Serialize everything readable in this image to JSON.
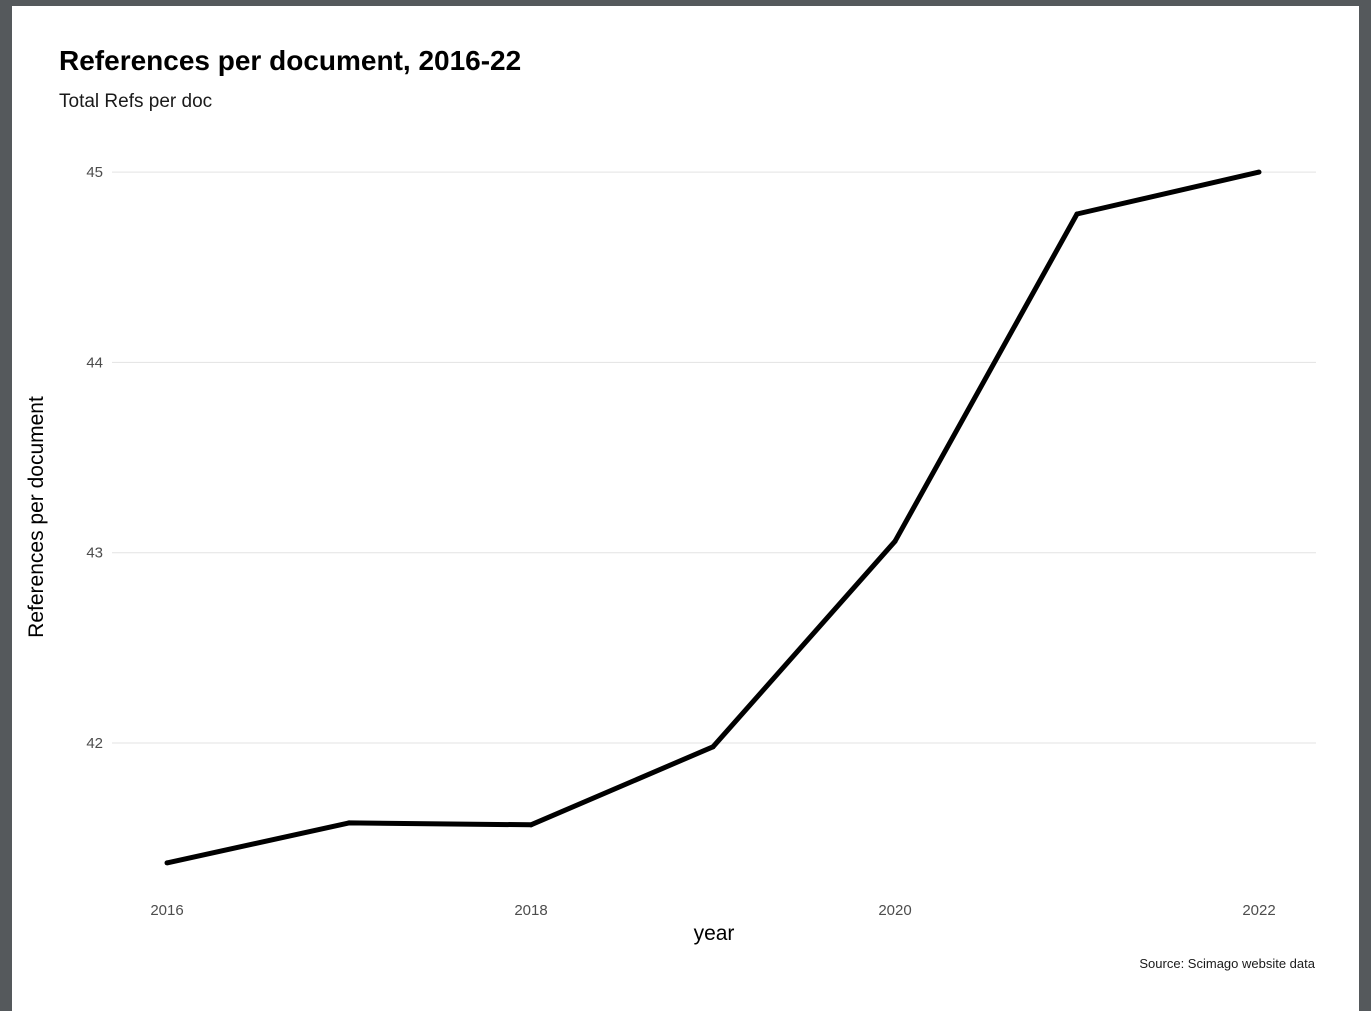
{
  "chart_data": {
    "type": "line",
    "title": "References per document, 2016-22",
    "subtitle": "Total Refs per doc",
    "xlabel": "year",
    "ylabel": "References per document",
    "caption": "Source: Scimago website data",
    "x": [
      2016,
      2017,
      2018,
      2019,
      2020,
      2021,
      2022
    ],
    "series": [
      {
        "values": [
          41.37,
          41.58,
          41.57,
          41.98,
          43.06,
          44.78,
          45.0
        ],
        "color": "#000000"
      }
    ],
    "xlim": [
      2016,
      2022
    ],
    "ylim": [
      41.37,
      45.0
    ],
    "x_ticks": [
      "2016",
      "2018",
      "2020",
      "2022"
    ],
    "x_tick_values": [
      2016,
      2018,
      2020,
      2022
    ],
    "y_ticks": [
      "42",
      "43",
      "44",
      "45"
    ],
    "y_tick_values": [
      42,
      43,
      44,
      45
    ],
    "grid": true,
    "gridline_color": "#e3e3e3"
  }
}
